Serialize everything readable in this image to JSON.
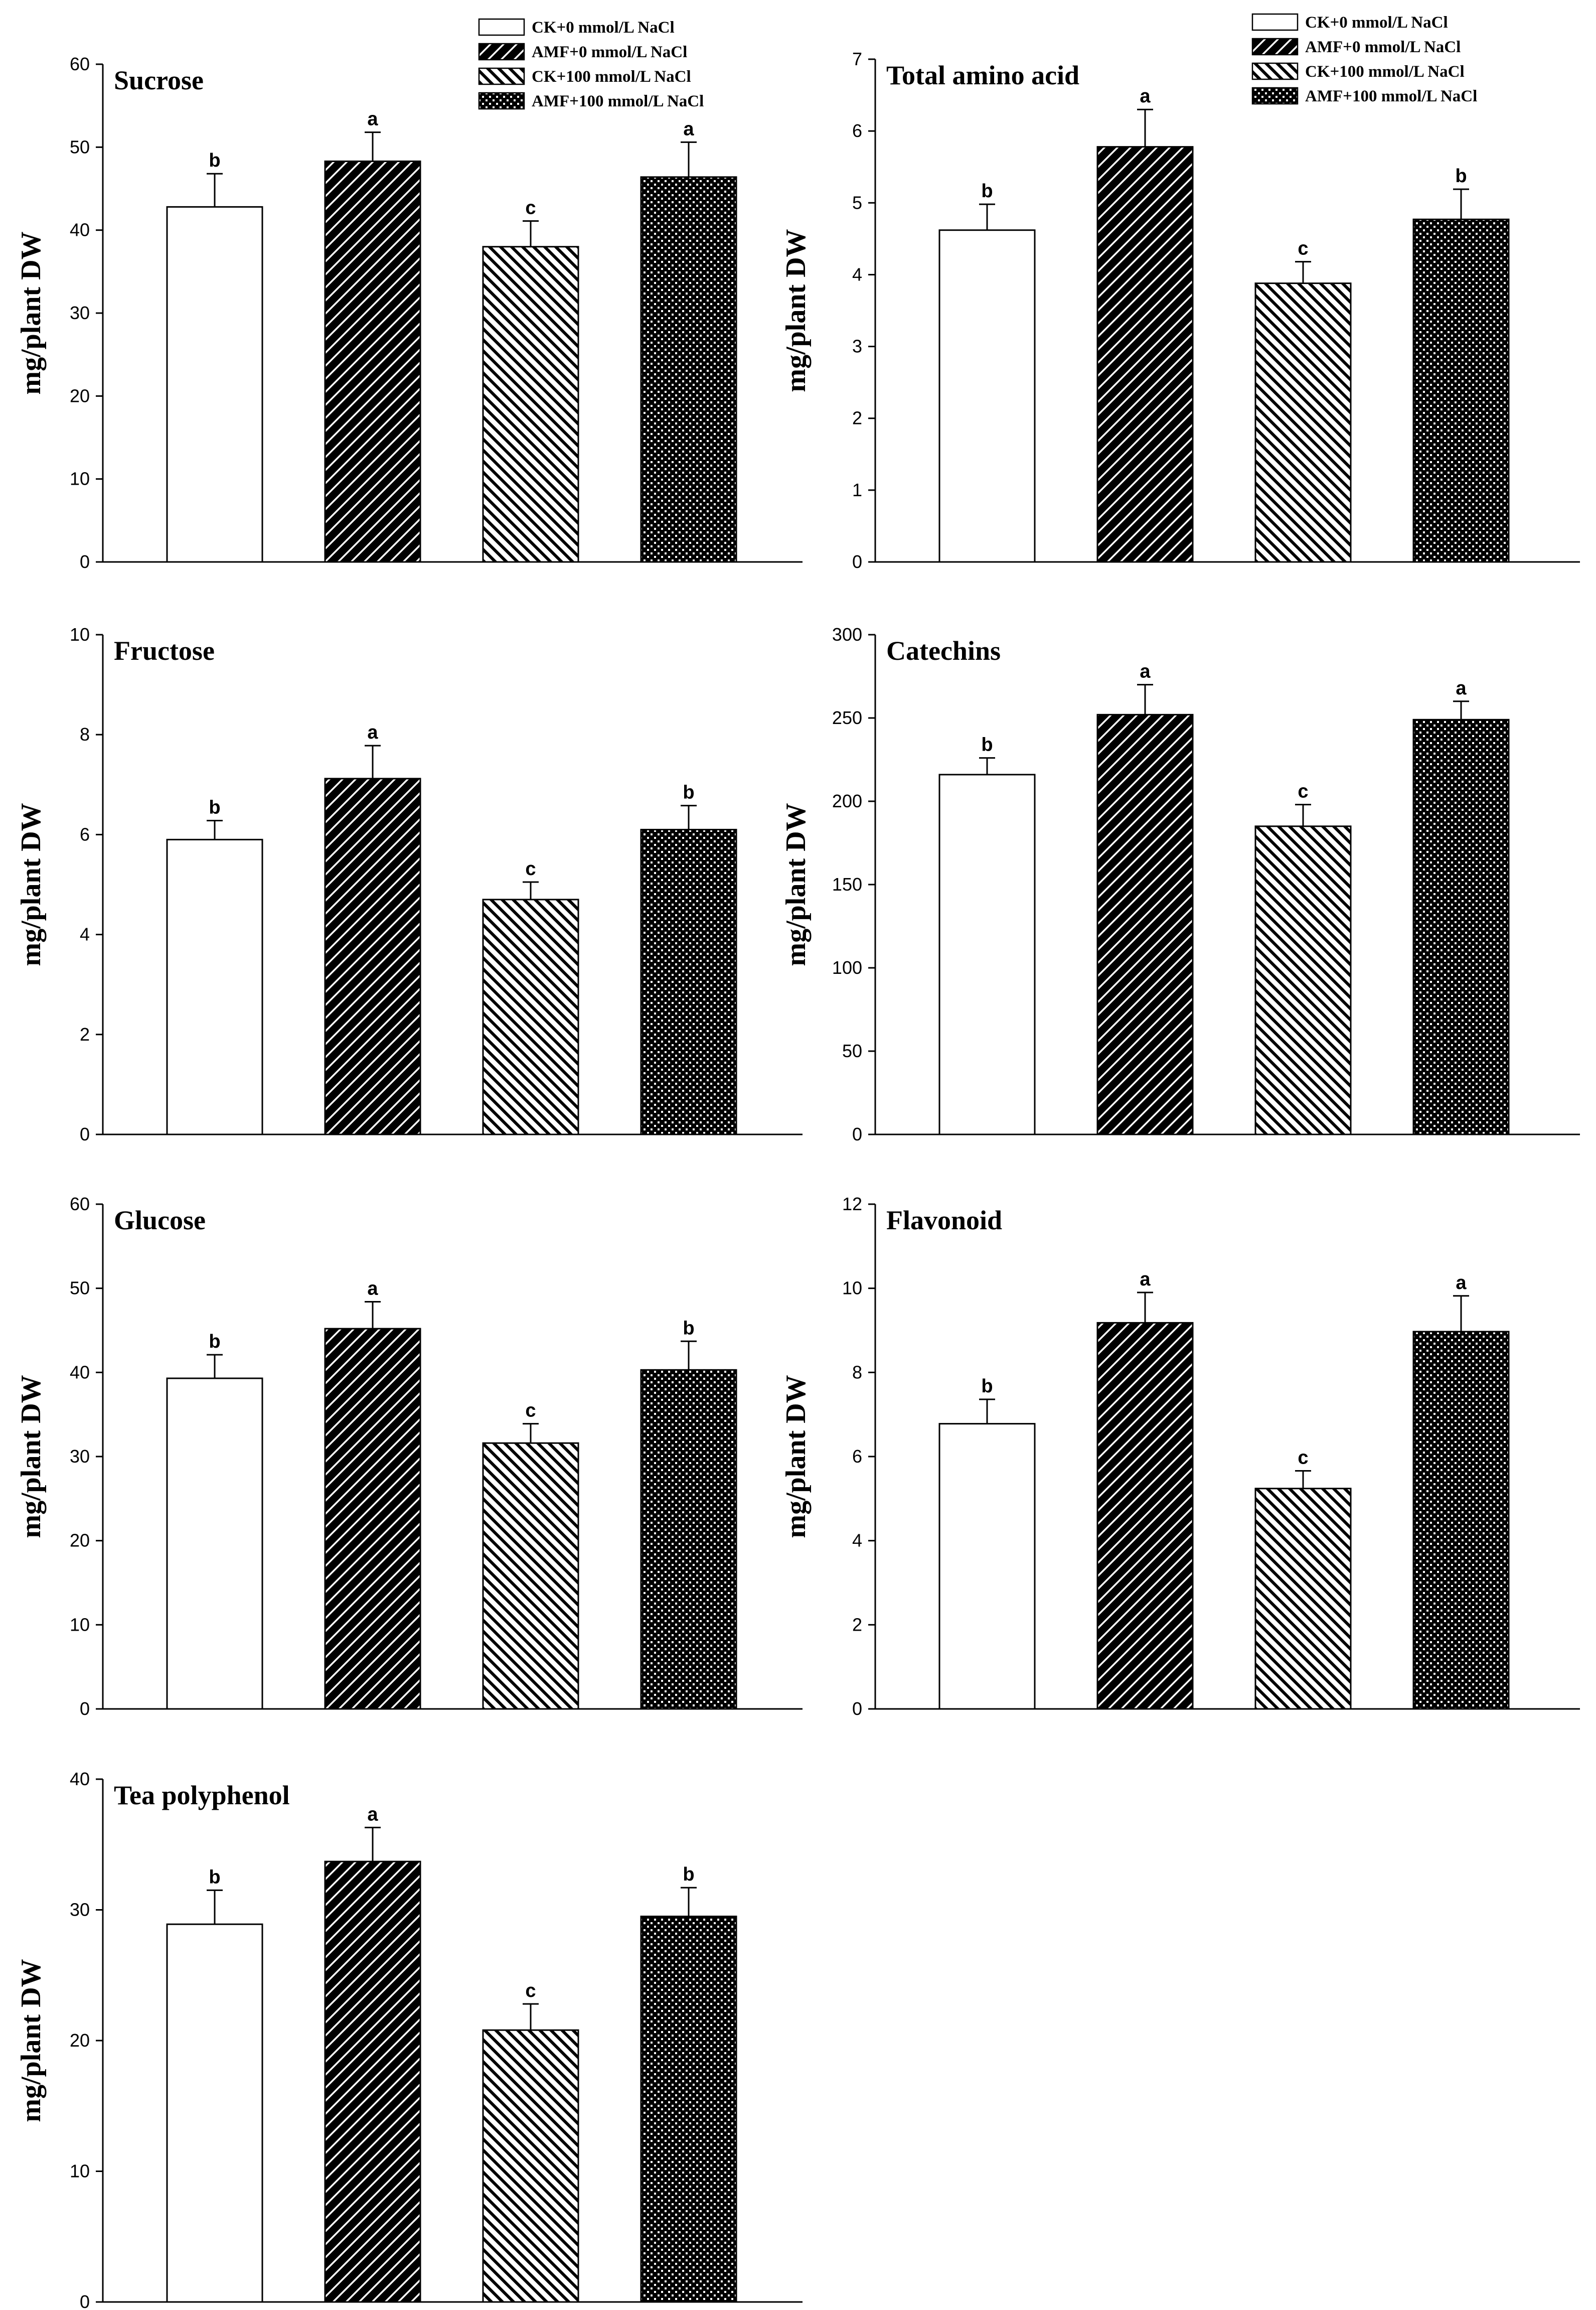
{
  "chart_data": {
    "type": "bar",
    "categories": [
      "CK+0 mmol/L NaCl",
      "AMF+0 mmol/L NaCl",
      "CK+100 mmol/L NaCl",
      "AMF+100 mmol/L NaCl"
    ],
    "legend": {
      "entries": [
        "CK+0 mmol/L NaCl",
        "AMF+0 mmol/L NaCl",
        "CK+100 mmol/L NaCl",
        "AMF+100 mmol/L NaCl"
      ]
    },
    "panels": [
      {
        "title": "Sucrose",
        "ylabel": "mg/plant DW",
        "ylim": [
          0,
          60
        ],
        "yticks": [
          0,
          10,
          20,
          30,
          40,
          50,
          60
        ],
        "values": [
          42.8,
          48.3,
          38.0,
          46.4
        ],
        "errors": [
          4.0,
          3.5,
          3.1,
          4.2
        ],
        "letters": [
          "b",
          "a",
          "c",
          "a"
        ],
        "legend_shown": true
      },
      {
        "title": "Total amino acid",
        "ylabel": "mg/plant DW",
        "ylim": [
          0,
          7
        ],
        "yticks": [
          0,
          1,
          2,
          3,
          4,
          5,
          6,
          7
        ],
        "values": [
          4.62,
          5.78,
          3.88,
          4.77
        ],
        "errors": [
          0.36,
          0.52,
          0.3,
          0.42
        ],
        "letters": [
          "b",
          "a",
          "c",
          "b"
        ],
        "legend_shown": true
      },
      {
        "title": "Fructose",
        "ylabel": "mg/plant DW",
        "ylim": [
          0,
          10
        ],
        "yticks": [
          0,
          2,
          4,
          6,
          8,
          10
        ],
        "values": [
          5.9,
          7.12,
          4.7,
          6.1
        ],
        "errors": [
          0.38,
          0.66,
          0.35,
          0.48
        ],
        "letters": [
          "b",
          "a",
          "c",
          "b"
        ],
        "legend_shown": false
      },
      {
        "title": "Catechins",
        "ylabel": "mg/plant DW",
        "ylim": [
          0,
          300
        ],
        "yticks": [
          0,
          50,
          100,
          150,
          200,
          250,
          300
        ],
        "values": [
          216,
          252,
          185,
          249
        ],
        "errors": [
          10,
          18,
          13,
          11
        ],
        "letters": [
          "b",
          "a",
          "c",
          "a"
        ],
        "legend_shown": false
      },
      {
        "title": "Glucose",
        "ylabel": "mg/plant DW",
        "ylim": [
          0,
          60
        ],
        "yticks": [
          0,
          10,
          20,
          30,
          40,
          50,
          60
        ],
        "values": [
          39.3,
          45.2,
          31.6,
          40.3
        ],
        "errors": [
          2.8,
          3.2,
          2.3,
          3.4
        ],
        "letters": [
          "b",
          "a",
          "c",
          "b"
        ],
        "legend_shown": false
      },
      {
        "title": "Flavonoid",
        "ylabel": "mg/plant DW",
        "ylim": [
          0,
          12
        ],
        "yticks": [
          0,
          2,
          4,
          6,
          8,
          10,
          12
        ],
        "values": [
          6.78,
          9.18,
          5.24,
          8.97
        ],
        "errors": [
          0.58,
          0.72,
          0.42,
          0.85
        ],
        "letters": [
          "b",
          "a",
          "c",
          "a"
        ],
        "legend_shown": false
      },
      {
        "title": "Tea polyphenol",
        "ylabel": "mg/plant DW",
        "ylim": [
          0,
          40
        ],
        "yticks": [
          0,
          10,
          20,
          30,
          40
        ],
        "values": [
          28.9,
          33.7,
          20.8,
          29.5
        ],
        "errors": [
          2.6,
          2.6,
          2.0,
          2.2
        ],
        "letters": [
          "b",
          "a",
          "c",
          "b"
        ],
        "legend_shown": false
      }
    ]
  }
}
